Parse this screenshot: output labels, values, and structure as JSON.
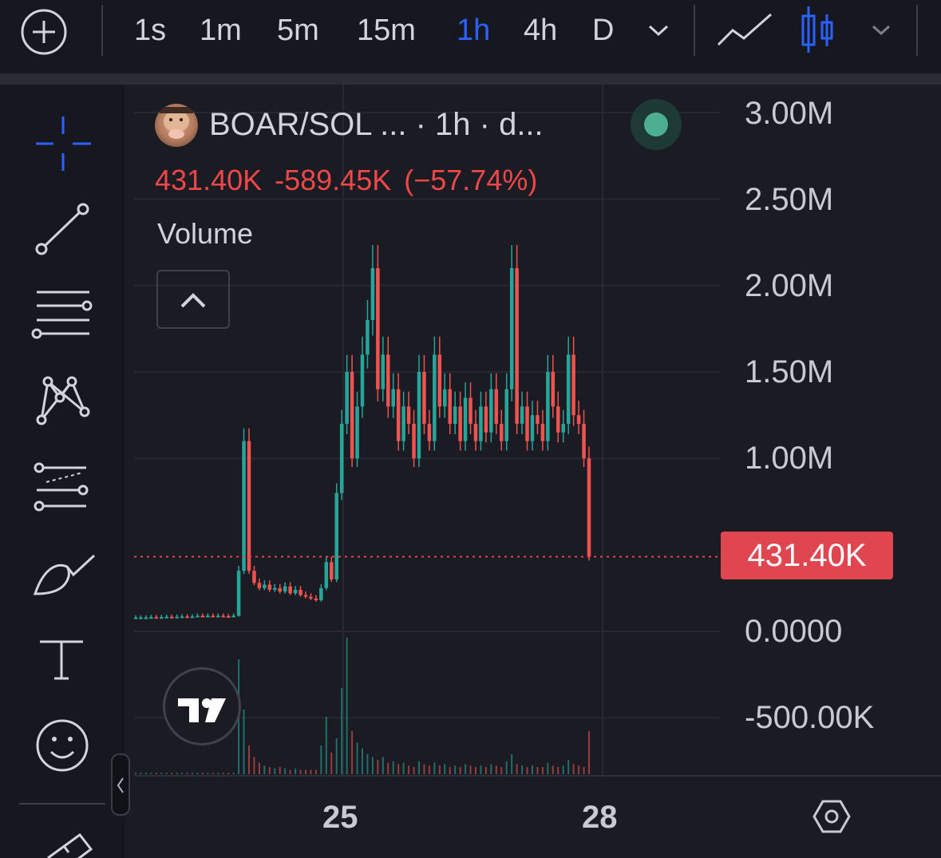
{
  "toolbar": {
    "intervals": [
      {
        "label": "1s",
        "active": false
      },
      {
        "label": "1m",
        "active": false
      },
      {
        "label": "5m",
        "active": false
      },
      {
        "label": "15m",
        "active": false
      },
      {
        "label": "1h",
        "active": true
      },
      {
        "label": "4h",
        "active": false
      },
      {
        "label": "D",
        "active": false
      }
    ]
  },
  "legend": {
    "title": "BOAR/SOL ... · 1h · d...",
    "last_value": "431.40K",
    "change": "-589.45K",
    "change_pct": "(−57.74%)",
    "volume_label": "Volume"
  },
  "price_scale": {
    "labels": [
      "3.00M",
      "2.50M",
      "2.00M",
      "1.50M",
      "1.00M",
      "0.0000",
      "-500.00K"
    ],
    "current_price": "431.40K"
  },
  "time_scale": {
    "labels": [
      "25",
      "28"
    ]
  },
  "colors": {
    "up": "#26a69a",
    "down": "#ef5350",
    "accent": "#2962ff",
    "badge": "#e04650"
  },
  "chart_data": {
    "type": "candlestick",
    "title": "BOAR/SOL ... · 1h · d...",
    "ylim": [
      -500000,
      3000000
    ],
    "y_ticks": [
      3000000,
      2500000,
      2000000,
      1500000,
      1000000,
      0,
      -500000
    ],
    "x_ticks": [
      "25",
      "28"
    ],
    "last_price": 431400,
    "change": -589450,
    "change_pct": -57.74,
    "candles_close": [
      80000,
      80000,
      80000,
      82000,
      80000,
      82000,
      84000,
      82000,
      84000,
      86000,
      84000,
      86000,
      90000,
      88000,
      90000,
      88000,
      90000,
      88000,
      86000,
      90000,
      350000,
      1100000,
      350000,
      280000,
      250000,
      270000,
      240000,
      250000,
      230000,
      260000,
      220000,
      240000,
      210000,
      200000,
      190000,
      180000,
      250000,
      400000,
      300000,
      800000,
      1200000,
      1500000,
      1000000,
      1300000,
      1600000,
      1800000,
      2100000,
      1400000,
      1600000,
      1300000,
      1400000,
      1100000,
      1300000,
      1200000,
      1000000,
      1500000,
      1200000,
      1100000,
      1600000,
      1300000,
      1400000,
      1200000,
      1300000,
      1100000,
      1350000,
      1200000,
      1100000,
      1300000,
      1150000,
      1400000,
      1200000,
      1100000,
      1400000,
      2100000,
      1200000,
      1300000,
      1100000,
      1250000,
      1200000,
      1100000,
      1500000,
      1300000,
      1150000,
      1200000,
      1600000,
      1250000,
      1200000,
      1000000,
      431400
    ],
    "volume": [
      1,
      1,
      1,
      1,
      1,
      1,
      1,
      1,
      1,
      1,
      1,
      1,
      1,
      1,
      1,
      1,
      1,
      1,
      1,
      1,
      80,
      45,
      20,
      12,
      8,
      6,
      5,
      4,
      5,
      4,
      3,
      4,
      3,
      3,
      3,
      3,
      20,
      40,
      15,
      25,
      60,
      95,
      30,
      22,
      18,
      14,
      12,
      10,
      12,
      8,
      9,
      7,
      8,
      6,
      5,
      9,
      7,
      6,
      8,
      6,
      7,
      5,
      6,
      5,
      7,
      6,
      5,
      6,
      5,
      7,
      6,
      5,
      9,
      14,
      7,
      6,
      5,
      6,
      5,
      5,
      8,
      6,
      5,
      6,
      10,
      7,
      6,
      5,
      30
    ]
  }
}
